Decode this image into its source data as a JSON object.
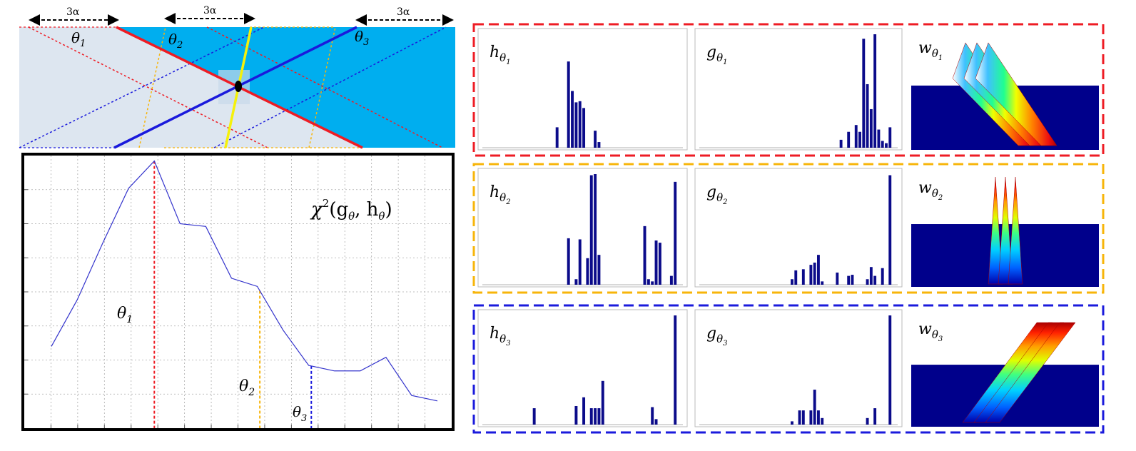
{
  "diagram": {
    "arrow_labels": [
      "3α",
      "3α",
      "3α"
    ],
    "angle_labels": [
      {
        "main": "θ",
        "sub": "1"
      },
      {
        "main": "θ",
        "sub": "2"
      },
      {
        "main": "θ",
        "sub": "3"
      }
    ],
    "colors": {
      "background_light": "#dde6f0",
      "band_cyan": "#00aeef",
      "red": "#ee1c24",
      "blue": "#1a1adc",
      "yellow": "#f5f10a",
      "orange": "#f7b50a"
    }
  },
  "plot": {
    "formula": "χ²(gθ, hθ)",
    "formula_parts": {
      "chi": "χ",
      "sup": "2",
      "args": "(g",
      "theta1": "θ",
      "mid": ", h",
      "theta2": "θ",
      "close": ")"
    },
    "markers": [
      {
        "label": "θ",
        "sub": "1",
        "color": "#ee1c24"
      },
      {
        "label": "θ",
        "sub": "2",
        "color": "#f7b50a"
      },
      {
        "label": "θ",
        "sub": "3",
        "color": "#1a1adc"
      }
    ]
  },
  "chart_data": {
    "type": "line",
    "title": "",
    "xlabel": "",
    "ylabel": "",
    "x": [
      0,
      1,
      2,
      3,
      4,
      5,
      6,
      7,
      8,
      9,
      10,
      11,
      12,
      13,
      14,
      15
    ],
    "values": [
      0.3,
      0.47,
      0.68,
      0.88,
      0.98,
      0.75,
      0.74,
      0.55,
      0.52,
      0.36,
      0.23,
      0.21,
      0.21,
      0.26,
      0.12,
      0.1
    ],
    "marker_x": [
      4,
      8.1,
      10.1
    ],
    "ylim": [
      0,
      1
    ],
    "grid": true
  },
  "panels": {
    "rows": [
      {
        "border_color": "#ee1c24",
        "h_label": {
          "main": "h",
          "sub": "θ",
          "subsub": "1"
        },
        "g_label": {
          "main": "g",
          "sub": "θ",
          "subsub": "1"
        },
        "w_label": {
          "main": "w",
          "sub": "θ",
          "subsub": "1"
        },
        "h_bars": [
          0,
          0,
          0,
          0,
          0,
          0,
          0,
          0,
          0,
          0,
          0,
          0,
          0,
          0,
          0,
          0,
          0,
          0,
          0.18,
          0,
          0,
          0.76,
          0.5,
          0.4,
          0.41,
          0.35,
          0,
          0,
          0.15,
          0.05,
          0,
          0,
          0,
          0,
          0,
          0,
          0,
          0,
          0,
          0,
          0,
          0,
          0,
          0,
          0,
          0,
          0,
          0,
          0,
          0
        ],
        "g_bars": [
          0,
          0,
          0,
          0,
          0,
          0,
          0,
          0,
          0,
          0,
          0,
          0,
          0,
          0,
          0,
          0,
          0,
          0,
          0,
          0,
          0,
          0,
          0,
          0,
          0,
          0,
          0,
          0,
          0,
          0,
          0,
          0,
          0,
          0,
          0,
          0,
          0.07,
          0,
          0.14,
          0,
          0.2,
          0.14,
          0.96,
          0.56,
          0.34,
          1.0,
          0.16,
          0.06,
          0.04,
          0.18
        ],
        "w_direction": "diag"
      },
      {
        "border_color": "#f7b50a",
        "h_label": {
          "main": "h",
          "sub": "θ",
          "subsub": "2"
        },
        "g_label": {
          "main": "g",
          "sub": "θ",
          "subsub": "2"
        },
        "w_label": {
          "main": "w",
          "sub": "θ",
          "subsub": "2"
        },
        "h_bars": [
          0,
          0,
          0,
          0,
          0,
          0,
          0,
          0,
          0,
          0,
          0,
          0,
          0,
          0,
          0,
          0,
          0,
          0,
          0,
          0,
          0,
          0.42,
          0,
          0.05,
          0.41,
          0,
          0.24,
          0.99,
          1.0,
          0.27,
          0,
          0,
          0,
          0,
          0,
          0,
          0,
          0,
          0,
          0,
          0,
          0.53,
          0.05,
          0.03,
          0.4,
          0.38,
          0,
          0,
          0.08,
          0.93
        ],
        "g_bars": [
          0,
          0,
          0,
          0,
          0,
          0,
          0,
          0,
          0,
          0,
          0,
          0,
          0,
          0,
          0,
          0,
          0,
          0,
          0,
          0,
          0,
          0,
          0,
          0.05,
          0.13,
          0,
          0.14,
          0,
          0.18,
          0.2,
          0.27,
          0.03,
          0,
          0,
          0,
          0.11,
          0,
          0,
          0.08,
          0.09,
          0,
          0,
          0,
          0.05,
          0.16,
          0.08,
          0,
          0.15,
          0,
          0.99
        ],
        "w_direction": "vertical"
      },
      {
        "border_color": "#1a1adc",
        "h_label": {
          "main": "h",
          "sub": "θ",
          "subsub": "3"
        },
        "g_label": {
          "main": "g",
          "sub": "θ",
          "subsub": "3"
        },
        "w_label": {
          "main": "w",
          "sub": "θ",
          "subsub": "3"
        },
        "h_bars": [
          0,
          0,
          0,
          0,
          0,
          0,
          0,
          0,
          0,
          0,
          0,
          0,
          0.15,
          0,
          0,
          0,
          0,
          0,
          0,
          0,
          0,
          0,
          0,
          0.17,
          0,
          0.25,
          0,
          0.15,
          0.15,
          0.15,
          0.4,
          0,
          0,
          0,
          0,
          0,
          0,
          0,
          0,
          0,
          0,
          0,
          0,
          0.16,
          0.05,
          0,
          0,
          0,
          0,
          1.0
        ],
        "g_bars": [
          0,
          0,
          0,
          0,
          0,
          0,
          0,
          0,
          0,
          0,
          0,
          0,
          0,
          0,
          0,
          0,
          0,
          0,
          0,
          0,
          0,
          0,
          0,
          0.03,
          0,
          0.13,
          0.13,
          0,
          0.13,
          0.32,
          0.13,
          0.06,
          0,
          0,
          0,
          0,
          0,
          0,
          0,
          0,
          0,
          0,
          0,
          0.06,
          0,
          0.15,
          0,
          0,
          0,
          1.0
        ],
        "w_direction": "antidiag"
      }
    ]
  }
}
